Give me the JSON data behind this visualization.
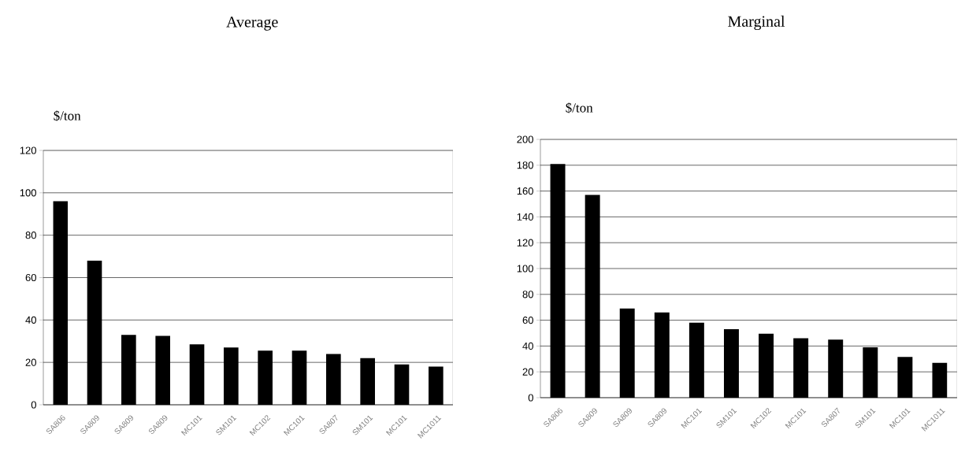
{
  "chart_data": [
    {
      "type": "bar",
      "title": "Average",
      "ylabel": "$/ton",
      "categories": [
        "SA806",
        "SA809",
        "SA809",
        "SA809",
        "MC101",
        "SM101",
        "MC102",
        "MC101",
        "SA807",
        "SM101",
        "MC101",
        "MC1011"
      ],
      "values": [
        96,
        68,
        33,
        32.5,
        28.5,
        27,
        25.5,
        25.5,
        24,
        22,
        19,
        18
      ],
      "color": "#000000",
      "ylim": [
        0,
        120
      ],
      "yticks": [
        0,
        20,
        40,
        60,
        80,
        100,
        120
      ],
      "grid": "y"
    },
    {
      "type": "bar",
      "title": "Marginal",
      "ylabel": "$/ton",
      "categories": [
        "SA806",
        "SA809",
        "SA809",
        "SA809",
        "MC101",
        "SM101",
        "MC102",
        "MC101",
        "SA807",
        "SM101",
        "MC101",
        "MC1011"
      ],
      "values": [
        181,
        157,
        69,
        66,
        58,
        53,
        49.5,
        46,
        45,
        39,
        31.5,
        27
      ],
      "color": "#000000",
      "ylim": [
        0,
        200
      ],
      "yticks": [
        0,
        20,
        40,
        60,
        80,
        100,
        120,
        140,
        160,
        180,
        200
      ],
      "grid": "y"
    }
  ]
}
